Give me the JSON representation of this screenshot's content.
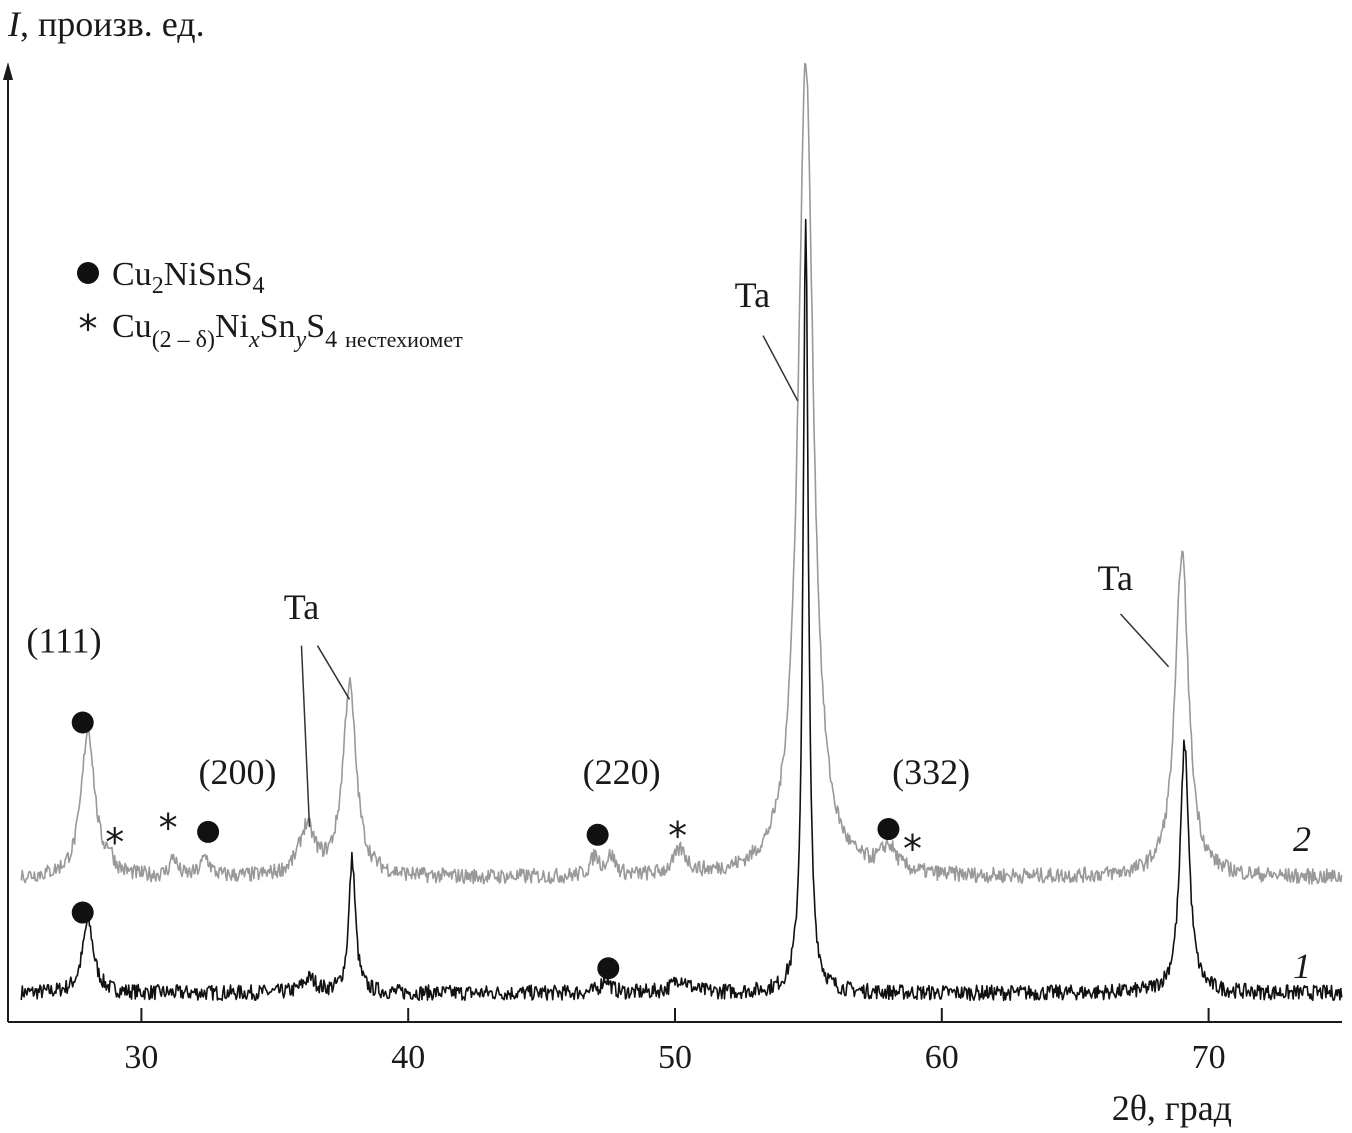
{
  "chart_data": {
    "type": "line",
    "title": "",
    "xlabel": "2θ, град",
    "ylabel": "I, произв. ед.",
    "ylabel_italic_part": "I",
    "ylabel_rest": ", произв. ед.",
    "xlim": [
      25,
      75
    ],
    "ylim": [
      0,
      100
    ],
    "x_ticks": [
      30,
      40,
      50,
      60,
      70
    ],
    "grid": false,
    "legend_placement": "top-left",
    "legend": [
      {
        "marker": "circle",
        "label": "Cu2NiSnS4",
        "parts": [
          "Cu",
          "2",
          "NiSnS",
          "4"
        ]
      },
      {
        "marker": "asterisk",
        "label": "Cu(2 – δ)NixSnyS4 нестехиомет",
        "parts": [
          "Cu",
          "(2 – δ)",
          "Ni",
          "x",
          "Sn",
          "y",
          "S",
          "4",
          "нестехиомет"
        ]
      }
    ],
    "series": [
      {
        "name": "1",
        "color": "#111111",
        "baseline": 3.0,
        "peaks": [
          {
            "x": 28.0,
            "h": 7.5,
            "w": 0.25
          },
          {
            "x": 36.3,
            "h": 1.5,
            "w": 0.3
          },
          {
            "x": 37.9,
            "h": 14.0,
            "w": 0.15
          },
          {
            "x": 47.4,
            "h": 1.5,
            "w": 0.2
          },
          {
            "x": 50.2,
            "h": 1.5,
            "w": 0.35
          },
          {
            "x": 54.9,
            "h": 80.0,
            "w": 0.12
          },
          {
            "x": 69.1,
            "h": 26.0,
            "w": 0.2
          }
        ]
      },
      {
        "name": "2",
        "color": "#999999",
        "baseline": 15.0,
        "peaks": [
          {
            "x": 28.0,
            "h": 15.5,
            "w": 0.3
          },
          {
            "x": 28.8,
            "h": 1.5,
            "w": 0.15
          },
          {
            "x": 31.2,
            "h": 2.0,
            "w": 0.15
          },
          {
            "x": 32.4,
            "h": 2.0,
            "w": 0.2
          },
          {
            "x": 36.2,
            "h": 5.0,
            "w": 0.35
          },
          {
            "x": 37.8,
            "h": 20.0,
            "w": 0.3
          },
          {
            "x": 47.0,
            "h": 2.0,
            "w": 0.2
          },
          {
            "x": 47.6,
            "h": 2.0,
            "w": 0.2
          },
          {
            "x": 50.2,
            "h": 2.5,
            "w": 0.3
          },
          {
            "x": 54.9,
            "h": 85.0,
            "w": 0.35
          },
          {
            "x": 58.0,
            "h": 2.5,
            "w": 0.35
          },
          {
            "x": 69.0,
            "h": 34.0,
            "w": 0.3
          }
        ]
      }
    ],
    "series_labels": [
      {
        "text": "1",
        "x": 73.5,
        "y": 4.6
      },
      {
        "text": "2",
        "x": 73.5,
        "y": 17.8
      }
    ],
    "annotations": [
      {
        "text": "(111)",
        "x": 27.1,
        "y": 38.5
      },
      {
        "text": "(200)",
        "x": 33.6,
        "y": 24.8
      },
      {
        "text": "(220)",
        "x": 48.0,
        "y": 24.8
      },
      {
        "text": "(332)",
        "x": 59.6,
        "y": 24.8
      },
      {
        "text": "Ta",
        "x": 36.0,
        "y": 42.0,
        "leaders": [
          [
            36.0,
            39.2,
            36.3,
            20.3
          ],
          [
            36.6,
            39.2,
            37.8,
            33.6
          ]
        ]
      },
      {
        "text": "Ta",
        "x": 52.9,
        "y": 74.5,
        "leaders": [
          [
            53.3,
            71.5,
            54.6,
            64.7
          ]
        ]
      },
      {
        "text": "Ta",
        "x": 66.5,
        "y": 45.0,
        "leaders": [
          [
            66.7,
            42.5,
            68.5,
            37.0
          ]
        ]
      }
    ],
    "markers": [
      {
        "type": "circle",
        "x": 27.8,
        "y": 31.2
      },
      {
        "type": "asterisk",
        "x": 29.0,
        "y": 18.8
      },
      {
        "type": "asterisk",
        "x": 31.0,
        "y": 20.3
      },
      {
        "type": "circle",
        "x": 32.5,
        "y": 19.8
      },
      {
        "type": "circle",
        "x": 47.1,
        "y": 19.5
      },
      {
        "type": "asterisk",
        "x": 50.1,
        "y": 19.5
      },
      {
        "type": "circle",
        "x": 58.0,
        "y": 20.1
      },
      {
        "type": "asterisk",
        "x": 58.9,
        "y": 18.1
      },
      {
        "type": "circle",
        "x": 27.8,
        "y": 11.4
      },
      {
        "type": "circle",
        "x": 47.5,
        "y": 5.6
      }
    ]
  }
}
